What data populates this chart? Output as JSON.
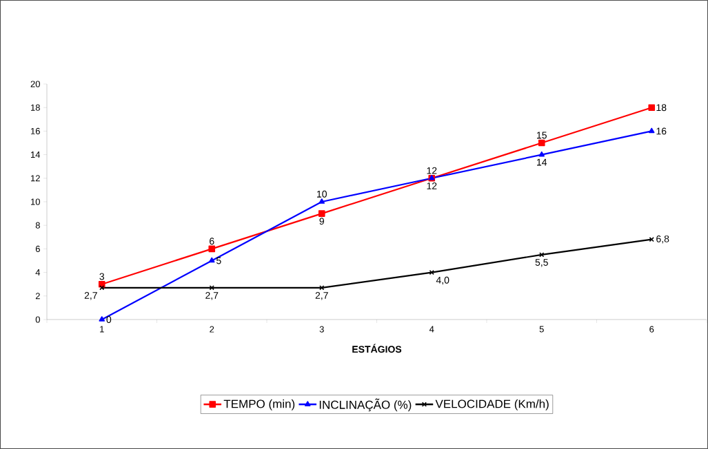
{
  "chart_data": {
    "type": "line",
    "xlabel": "ESTÁGIOS",
    "categories": [
      "1",
      "2",
      "3",
      "4",
      "5",
      "6"
    ],
    "ylim": [
      0,
      20
    ],
    "yticks": [
      0,
      2,
      4,
      6,
      8,
      10,
      12,
      14,
      16,
      18,
      20
    ],
    "grid": false,
    "legend": "bottom",
    "line_style": "solid",
    "series": [
      {
        "name": "TEMPO (min)",
        "color": "#ff0000",
        "marker": "square",
        "values": [
          3,
          6,
          9,
          12,
          15,
          18
        ],
        "value_labels": [
          "3",
          "6",
          "9",
          "12",
          "15",
          "18"
        ]
      },
      {
        "name": "INCLINAÇÃO (%)",
        "color": "#0000ff",
        "marker": "triangle",
        "values": [
          0,
          5,
          10,
          12,
          14,
          16
        ],
        "value_labels": [
          "0",
          "5",
          "10",
          "12",
          "14",
          "16"
        ]
      },
      {
        "name": "VELOCIDADE (Km/h)",
        "color": "#000000",
        "marker": "cross",
        "values": [
          2.7,
          2.7,
          2.7,
          4.0,
          5.5,
          6.8
        ],
        "value_labels": [
          "2,7",
          "2,7",
          "2,7",
          "4,0",
          "5,5",
          "6,8"
        ]
      }
    ]
  }
}
